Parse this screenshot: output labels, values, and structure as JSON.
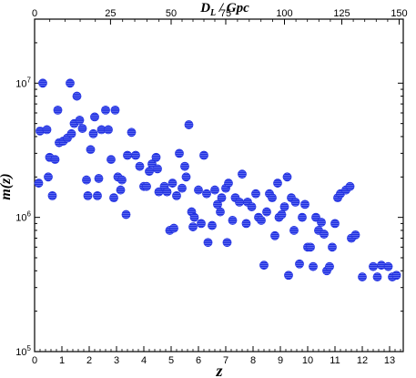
{
  "chart_data": {
    "type": "scatter",
    "title": "",
    "xlabel": "z",
    "ylabel": "m(z)",
    "top_axis_label": "D_L / Gpc",
    "xlim": [
      0,
      13.5
    ],
    "ylim": [
      100000,
      30000000
    ],
    "y_scale": "log",
    "grid": false,
    "marker_color": "#1f2fe0",
    "x_ticks": [
      "0",
      "1",
      "2",
      "3",
      "4",
      "5",
      "6",
      "7",
      "8",
      "9",
      "10",
      "11",
      "12",
      "13"
    ],
    "top_ticks": [
      {
        "label": "0",
        "z": 0.0
      },
      {
        "label": "25",
        "z": 2.78
      },
      {
        "label": "50",
        "z": 5.0
      },
      {
        "label": "75",
        "z": 7.0
      },
      {
        "label": "100",
        "z": 9.15
      },
      {
        "label": "125",
        "z": 11.25
      },
      {
        "label": "150",
        "z": 13.35
      }
    ],
    "y_ticks": [
      {
        "value": 100000,
        "base": "10",
        "exp": "5"
      },
      {
        "value": 1000000,
        "base": "10",
        "exp": "6"
      },
      {
        "value": 10000000,
        "base": "10",
        "exp": "7"
      }
    ],
    "points": [
      [
        0.15,
        1800000
      ],
      [
        0.2,
        4400000
      ],
      [
        0.3,
        10000000
      ],
      [
        0.45,
        4500000
      ],
      [
        0.5,
        2000000
      ],
      [
        0.55,
        2800000
      ],
      [
        0.65,
        1450000
      ],
      [
        0.75,
        2700000
      ],
      [
        0.85,
        6300000
      ],
      [
        0.9,
        3600000
      ],
      [
        1.05,
        3700000
      ],
      [
        1.2,
        3900000
      ],
      [
        1.3,
        10000000
      ],
      [
        1.35,
        4200000
      ],
      [
        1.45,
        5000000
      ],
      [
        1.55,
        8000000
      ],
      [
        1.65,
        5300000
      ],
      [
        1.75,
        4600000
      ],
      [
        1.9,
        1900000
      ],
      [
        1.95,
        1450000
      ],
      [
        2.05,
        3200000
      ],
      [
        2.15,
        4200000
      ],
      [
        2.2,
        5600000
      ],
      [
        2.3,
        1450000
      ],
      [
        2.35,
        1950000
      ],
      [
        2.45,
        4500000
      ],
      [
        2.6,
        6300000
      ],
      [
        2.7,
        4500000
      ],
      [
        2.8,
        2700000
      ],
      [
        2.9,
        1400000
      ],
      [
        2.95,
        6300000
      ],
      [
        3.05,
        2000000
      ],
      [
        3.15,
        1600000
      ],
      [
        3.2,
        1900000
      ],
      [
        3.35,
        1050000
      ],
      [
        3.4,
        2900000
      ],
      [
        3.55,
        4300000
      ],
      [
        3.7,
        2900000
      ],
      [
        3.85,
        2400000
      ],
      [
        4.0,
        1700000
      ],
      [
        4.1,
        1700000
      ],
      [
        4.2,
        2200000
      ],
      [
        4.3,
        2500000
      ],
      [
        4.45,
        2800000
      ],
      [
        4.5,
        2300000
      ],
      [
        4.55,
        1550000
      ],
      [
        4.75,
        1700000
      ],
      [
        4.85,
        1550000
      ],
      [
        4.95,
        800000
      ],
      [
        5.05,
        1800000
      ],
      [
        5.1,
        830000
      ],
      [
        5.2,
        1450000
      ],
      [
        5.3,
        3000000
      ],
      [
        5.4,
        1650000
      ],
      [
        5.5,
        2400000
      ],
      [
        5.55,
        2000000
      ],
      [
        5.65,
        4900000
      ],
      [
        5.75,
        1100000
      ],
      [
        5.8,
        850000
      ],
      [
        5.85,
        1000000
      ],
      [
        6.0,
        1600000
      ],
      [
        6.1,
        900000
      ],
      [
        6.2,
        2900000
      ],
      [
        6.3,
        1500000
      ],
      [
        6.35,
        650000
      ],
      [
        6.5,
        870000
      ],
      [
        6.6,
        1600000
      ],
      [
        6.7,
        1250000
      ],
      [
        6.8,
        1100000
      ],
      [
        6.85,
        1400000
      ],
      [
        7.0,
        1650000
      ],
      [
        7.05,
        650000
      ],
      [
        7.1,
        1800000
      ],
      [
        7.25,
        950000
      ],
      [
        7.35,
        1400000
      ],
      [
        7.5,
        1300000
      ],
      [
        7.6,
        2100000
      ],
      [
        7.75,
        900000
      ],
      [
        7.8,
        1300000
      ],
      [
        7.95,
        1200000
      ],
      [
        8.1,
        1500000
      ],
      [
        8.2,
        1000000
      ],
      [
        8.3,
        950000
      ],
      [
        8.4,
        440000
      ],
      [
        8.5,
        1100000
      ],
      [
        8.6,
        1500000
      ],
      [
        8.7,
        1400000
      ],
      [
        8.8,
        730000
      ],
      [
        8.9,
        1800000
      ],
      [
        8.95,
        1000000
      ],
      [
        9.05,
        1050000
      ],
      [
        9.15,
        1200000
      ],
      [
        9.25,
        2000000
      ],
      [
        9.3,
        370000
      ],
      [
        9.4,
        1400000
      ],
      [
        9.5,
        800000
      ],
      [
        9.55,
        1300000
      ],
      [
        9.7,
        450000
      ],
      [
        9.8,
        1000000
      ],
      [
        9.9,
        1250000
      ],
      [
        10.0,
        600000
      ],
      [
        10.1,
        600000
      ],
      [
        10.2,
        430000
      ],
      [
        10.3,
        1000000
      ],
      [
        10.4,
        800000
      ],
      [
        10.5,
        920000
      ],
      [
        10.6,
        750000
      ],
      [
        10.7,
        400000
      ],
      [
        10.8,
        430000
      ],
      [
        10.9,
        600000
      ],
      [
        11.0,
        900000
      ],
      [
        11.1,
        1400000
      ],
      [
        11.2,
        1500000
      ],
      [
        11.4,
        1600000
      ],
      [
        11.55,
        1700000
      ],
      [
        11.6,
        700000
      ],
      [
        11.75,
        740000
      ],
      [
        12.0,
        360000
      ],
      [
        12.4,
        430000
      ],
      [
        12.55,
        360000
      ],
      [
        12.7,
        440000
      ],
      [
        12.95,
        430000
      ],
      [
        13.1,
        360000
      ],
      [
        13.25,
        370000
      ]
    ]
  }
}
